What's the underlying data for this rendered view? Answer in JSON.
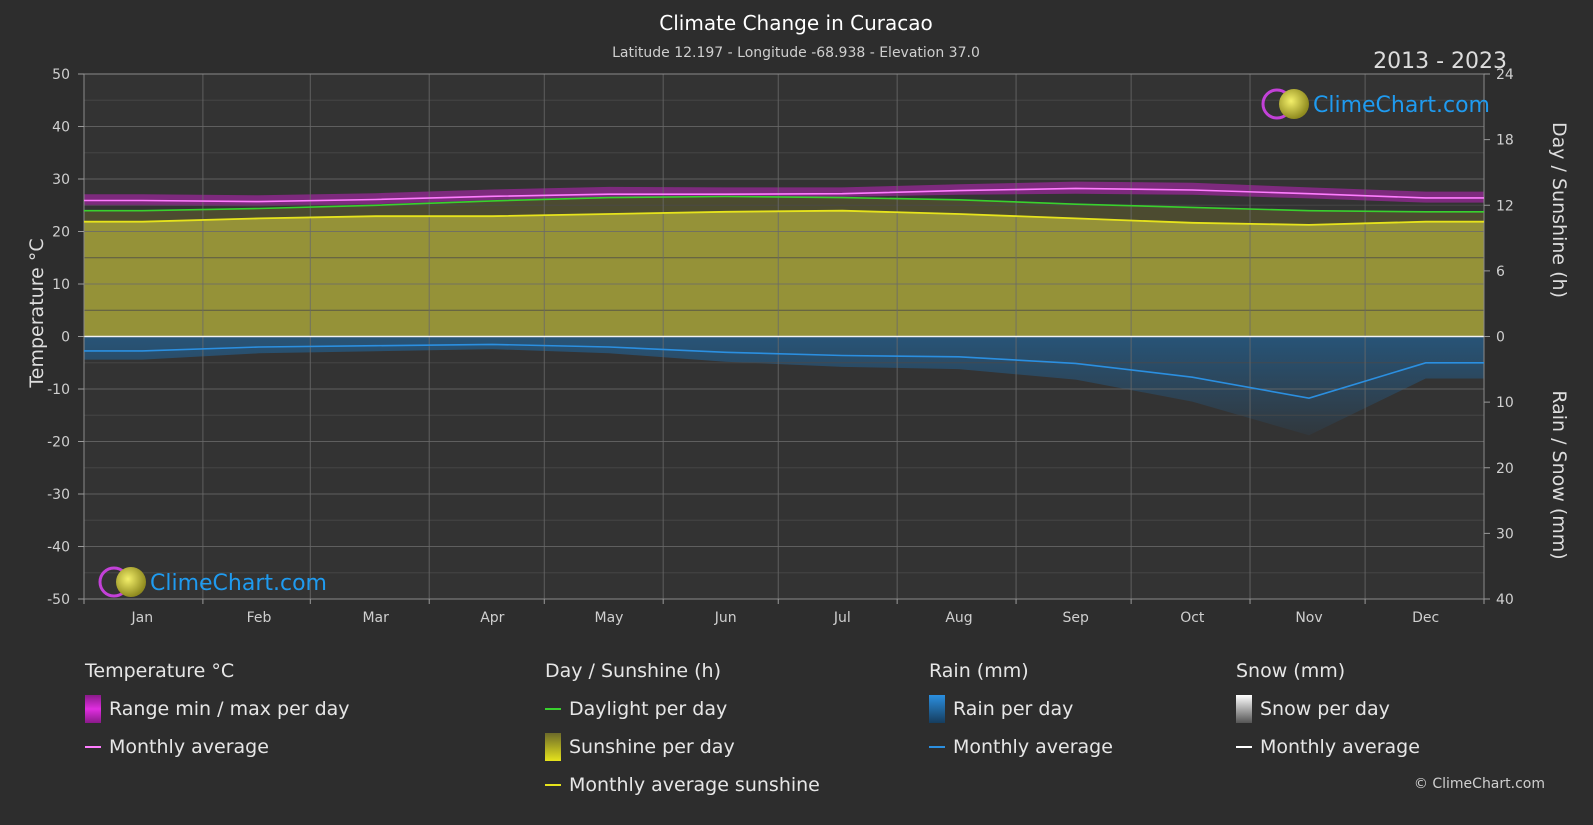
{
  "title": "Climate Change in Curacao",
  "subtitle": "Latitude 12.197 - Longitude -68.938 - Elevation 37.0",
  "years": "2013 - 2023",
  "brand": "ClimeChart.com",
  "copyright": "© ClimeChart.com",
  "colors": {
    "background": "#2d2d2d",
    "temp_range": "#d81ed8",
    "temp_avg": "#ff7dff",
    "daylight": "#39d12e",
    "sunshine_fill": "#a7a33a",
    "sunshine_avg": "#e6e31c",
    "rain": "#1d6fb0",
    "rain_avg": "#2b8fe0",
    "snow_avg": "#ffffff"
  },
  "legend": {
    "temperature": {
      "title": "Temperature °C",
      "range": "Range min / max per day",
      "avg": "Monthly average"
    },
    "sunshine": {
      "title": "Day / Sunshine (h)",
      "daylight": "Daylight per day",
      "sunshine": "Sunshine per day",
      "avg": "Monthly average sunshine"
    },
    "rain": {
      "title": "Rain (mm)",
      "per_day": "Rain per day",
      "avg": "Monthly average"
    },
    "snow": {
      "title": "Snow (mm)",
      "per_day": "Snow per day",
      "avg": "Monthly average"
    }
  },
  "chart_data": {
    "type": "line",
    "title": "Climate Change in Curacao",
    "categories": [
      "Jan",
      "Feb",
      "Mar",
      "Apr",
      "May",
      "Jun",
      "Jul",
      "Aug",
      "Sep",
      "Oct",
      "Nov",
      "Dec"
    ],
    "axes": {
      "left": {
        "label": "Temperature °C",
        "ticks": [
          50,
          40,
          30,
          20,
          10,
          0,
          -10,
          -20,
          -30,
          -40,
          -50
        ],
        "range": [
          -50,
          50
        ]
      },
      "right_top": {
        "label": "Day / Sunshine (h)",
        "ticks": [
          24,
          18,
          12,
          6,
          0
        ],
        "range": [
          0,
          24
        ]
      },
      "right_bottom": {
        "label": "Rain / Snow (mm)",
        "ticks": [
          0,
          10,
          20,
          30,
          40
        ],
        "range": [
          0,
          40
        ]
      }
    },
    "series": [
      {
        "name": "Range min / max per day",
        "unit": "°C",
        "min": [
          24.9,
          24.8,
          25.2,
          26.0,
          26.6,
          26.7,
          26.6,
          27.0,
          27.2,
          27.0,
          26.3,
          25.5
        ],
        "max": [
          27.1,
          26.9,
          27.3,
          28.0,
          28.5,
          28.4,
          28.4,
          29.0,
          29.5,
          29.3,
          28.4,
          27.6
        ]
      },
      {
        "name": "Monthly average",
        "unit": "°C",
        "values": [
          25.9,
          25.7,
          26.1,
          26.7,
          27.1,
          27.1,
          27.2,
          27.8,
          28.2,
          27.9,
          27.2,
          26.4
        ]
      },
      {
        "name": "Daylight per day",
        "unit": "h",
        "values": [
          11.5,
          11.7,
          12.0,
          12.4,
          12.7,
          12.8,
          12.7,
          12.5,
          12.1,
          11.8,
          11.5,
          11.4
        ]
      },
      {
        "name": "Monthly average sunshine",
        "unit": "h",
        "values": [
          10.5,
          10.8,
          11.0,
          11.0,
          11.2,
          11.4,
          11.5,
          11.2,
          10.8,
          10.4,
          10.2,
          10.5
        ]
      },
      {
        "name": "Rain monthly average",
        "unit": "mm",
        "values": [
          2.2,
          1.6,
          1.4,
          1.2,
          1.6,
          2.4,
          2.9,
          3.1,
          4.1,
          6.2,
          9.4,
          4.0
        ]
      },
      {
        "name": "Snow monthly average",
        "unit": "mm",
        "values": [
          0,
          0,
          0,
          0,
          0,
          0,
          0,
          0,
          0,
          0,
          0,
          0
        ]
      }
    ],
    "grid": true,
    "legend_position": "bottom"
  }
}
